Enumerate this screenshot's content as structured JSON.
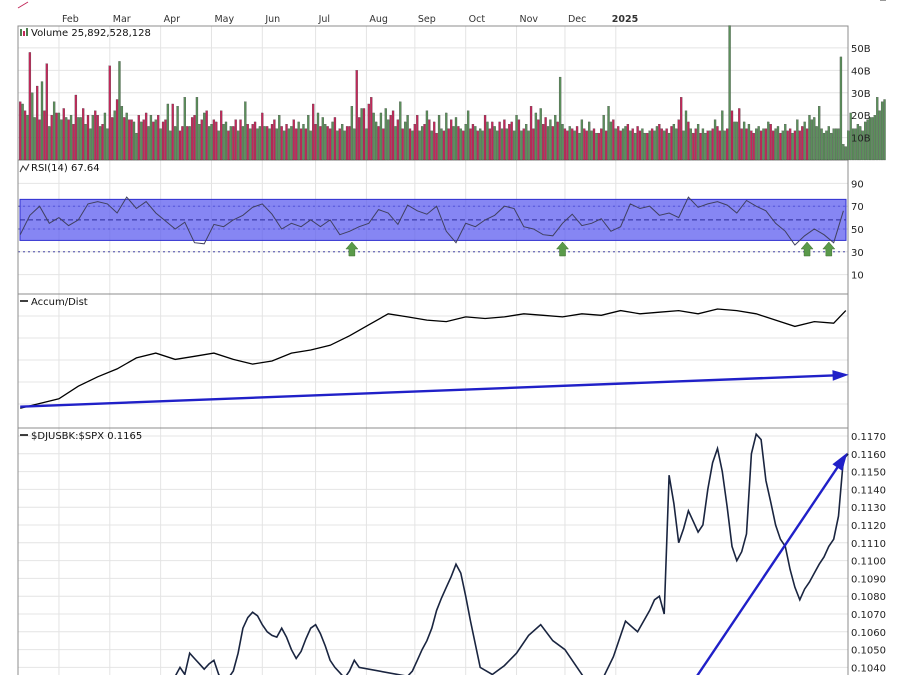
{
  "colors": {
    "up": "#5b8f5b",
    "down": "#c2285a",
    "rsi_band": "#5757ee",
    "trend": "#2020c8",
    "line": "#1a2540",
    "arrow": "#5a9a4a"
  },
  "chart_data": [
    {
      "type": "bar",
      "panel": "volume",
      "title": "Volume 25,892,528,128",
      "title_parts": {
        "name": "Volume",
        "value": "25,892,528,128"
      },
      "y_ticks": [
        "50B",
        "40B",
        "30B",
        "20B",
        "10B"
      ],
      "ylim_billions": [
        0,
        58
      ],
      "values_billions": [
        26,
        25,
        22,
        20,
        48,
        30,
        19,
        33,
        18,
        35,
        22,
        43,
        15,
        20,
        26,
        21,
        21,
        18,
        23,
        19,
        18,
        20,
        16,
        29,
        19,
        19,
        23,
        16,
        20,
        14,
        20,
        22,
        20,
        15,
        16,
        21,
        14,
        42,
        19,
        22,
        27,
        44,
        24,
        19,
        21,
        18,
        18,
        17,
        12,
        20,
        17,
        18,
        21,
        15,
        20,
        17,
        18,
        20,
        14,
        17,
        18,
        25,
        13,
        25,
        15,
        24,
        13,
        15,
        28,
        15,
        15,
        19,
        20,
        28,
        16,
        18,
        21,
        22,
        15,
        16,
        18,
        17,
        13,
        22,
        16,
        17,
        13,
        15,
        15,
        18,
        13,
        18,
        15,
        26,
        16,
        14,
        16,
        17,
        14,
        15,
        21,
        15,
        15,
        14,
        16,
        18,
        14,
        20,
        15,
        13,
        16,
        14,
        15,
        18,
        14,
        17,
        14,
        16,
        14,
        20,
        13,
        25,
        16,
        21,
        15,
        19,
        16,
        15,
        14,
        17,
        19,
        13,
        14,
        16,
        13,
        15,
        15,
        24,
        14,
        40,
        19,
        23,
        23,
        14,
        25,
        28,
        21,
        17,
        15,
        21,
        14,
        23,
        18,
        20,
        22,
        15,
        18,
        26,
        14,
        17,
        20,
        14,
        13,
        16,
        20,
        13,
        15,
        16,
        22,
        18,
        13,
        17,
        12,
        20,
        14,
        13,
        21,
        14,
        18,
        15,
        19,
        15,
        14,
        13,
        16,
        22,
        14,
        16,
        15,
        13,
        14,
        13,
        20,
        17,
        14,
        17,
        15,
        13,
        17,
        14,
        18,
        14,
        16,
        17,
        13,
        20,
        18,
        13,
        14,
        16,
        13,
        24,
        14,
        21,
        18,
        23,
        16,
        19,
        15,
        18,
        15,
        20,
        17,
        37,
        16,
        14,
        13,
        15,
        14,
        13,
        15,
        12,
        18,
        14,
        13,
        17,
        13,
        14,
        12,
        12,
        14,
        20,
        13,
        24,
        17,
        18,
        14,
        15,
        13,
        14,
        15,
        16,
        13,
        14,
        12,
        15,
        13,
        14,
        12,
        12,
        13,
        14,
        13,
        15,
        16,
        14,
        13,
        14,
        12,
        15,
        16,
        14,
        18,
        28,
        13,
        22,
        17,
        14,
        12,
        14,
        16,
        12,
        14,
        12,
        13,
        13,
        14,
        18,
        15,
        13,
        22,
        13,
        14,
        60,
        22,
        17,
        17,
        23,
        14,
        17,
        14,
        16,
        13,
        12,
        14,
        15,
        13,
        14,
        14,
        17,
        16,
        13,
        14,
        15,
        12,
        13,
        16,
        13,
        14,
        12,
        13,
        18,
        13,
        15,
        17,
        14,
        20,
        18,
        19,
        15,
        24,
        14,
        12,
        13,
        15,
        12,
        14,
        14,
        14,
        46,
        7,
        6,
        13,
        21,
        14,
        14,
        16,
        15,
        13,
        17,
        18,
        19,
        19,
        20,
        28,
        22,
        26,
        27
      ],
      "down_flags": [
        1,
        0,
        1,
        0,
        1,
        0,
        0,
        1,
        1,
        0,
        1,
        1,
        0,
        1,
        0,
        1,
        0,
        0,
        1,
        0,
        1,
        0,
        1,
        1,
        0,
        0,
        1,
        0,
        1,
        0,
        0,
        1,
        1,
        0,
        1,
        0,
        0,
        1,
        1,
        0,
        1,
        0,
        0,
        1,
        0,
        1,
        1,
        0,
        0,
        1,
        0,
        1,
        1,
        0,
        0,
        1,
        0,
        1,
        0,
        1,
        1,
        0,
        0,
        1,
        0,
        0,
        1,
        1,
        0,
        1,
        0,
        1,
        1,
        0,
        0,
        1,
        0,
        1,
        0,
        0,
        1,
        1,
        0,
        1,
        0,
        0,
        1,
        0,
        1,
        1,
        0,
        1,
        0,
        0,
        1,
        0,
        1,
        1,
        0,
        0,
        1,
        0,
        1,
        0,
        1,
        1,
        0,
        0,
        1,
        0,
        1,
        0,
        0,
        1,
        1,
        0,
        1,
        0,
        1,
        0,
        0,
        1,
        1,
        0,
        1,
        0,
        0,
        1,
        1,
        0,
        1,
        0,
        1,
        0,
        0,
        1,
        1,
        0,
        0,
        1,
        1,
        0,
        1,
        0,
        1,
        1,
        0,
        0,
        1,
        0,
        1,
        0,
        0,
        1,
        1,
        0,
        1,
        0,
        1,
        0,
        0,
        1,
        0,
        1,
        1,
        0,
        0,
        1,
        0,
        1,
        0,
        1,
        1,
        0,
        0,
        1,
        0,
        1,
        1,
        0,
        0,
        1,
        0,
        1,
        0,
        0,
        1,
        1,
        0,
        1,
        0,
        0,
        1,
        0,
        1,
        1,
        0,
        0,
        1,
        0,
        1,
        0,
        1,
        1,
        0,
        0,
        1,
        0,
        1,
        0,
        0,
        1,
        1,
        0,
        1,
        0,
        1,
        1,
        0,
        0,
        1,
        0,
        1,
        0,
        0,
        1,
        1,
        0,
        1,
        0,
        1,
        0,
        0,
        1,
        1,
        0,
        0,
        1,
        0,
        1,
        1,
        0,
        1,
        0,
        0,
        1,
        0,
        1,
        1,
        0,
        0,
        1,
        0,
        1,
        0,
        1,
        1,
        0,
        0,
        1,
        0,
        1,
        0,
        0,
        1,
        1,
        0,
        1,
        0,
        1,
        0,
        0,
        1,
        1,
        0,
        0,
        1,
        0,
        1,
        1,
        0,
        1,
        0,
        0,
        1,
        0,
        1,
        0,
        1,
        1,
        0,
        0,
        1,
        0,
        1,
        0,
        0,
        1,
        1,
        0,
        1,
        0,
        1,
        1,
        0,
        0,
        1,
        0,
        1,
        0,
        1,
        1,
        0,
        0,
        1,
        0,
        0,
        1,
        1,
        0,
        1,
        0,
        1,
        1,
        0,
        1
      ]
    },
    {
      "type": "line",
      "panel": "rsi",
      "title": "RSI(14) 67.64",
      "title_parts": {
        "name": "RSI(14)",
        "value": "67.64"
      },
      "y_ticks": [
        "90",
        "70",
        "50",
        "30",
        "10"
      ],
      "ylim": [
        0,
        100
      ],
      "band": [
        40,
        76
      ],
      "x_index": [
        0,
        4,
        8,
        12,
        16,
        20,
        24,
        28,
        32,
        36,
        40,
        44,
        48,
        52,
        56,
        60,
        64,
        68,
        72,
        76,
        80,
        84,
        88,
        92,
        96,
        100,
        104,
        108,
        112,
        116,
        120,
        124,
        128,
        132,
        136,
        140,
        144,
        148,
        152,
        156,
        160,
        164,
        168,
        172,
        176,
        180,
        184,
        188,
        192,
        196,
        200,
        204,
        208,
        212,
        216,
        220,
        224,
        228,
        232,
        236,
        240,
        244,
        248,
        252,
        256,
        260,
        264,
        268,
        272,
        276,
        280,
        284,
        288,
        292,
        296,
        300,
        304,
        308,
        312,
        316,
        320,
        324,
        328,
        332,
        336,
        340
      ],
      "values": [
        45,
        62,
        70,
        55,
        60,
        53,
        58,
        72,
        74,
        72,
        64,
        78,
        68,
        74,
        64,
        57,
        50,
        56,
        38,
        37,
        54,
        52,
        58,
        62,
        69,
        72,
        63,
        50,
        55,
        52,
        58,
        52,
        58,
        45,
        48,
        52,
        55,
        67,
        64,
        54,
        71,
        66,
        63,
        70,
        48,
        38,
        55,
        52,
        58,
        62,
        70,
        68,
        52,
        50,
        45,
        44,
        55,
        63,
        53,
        55,
        59,
        48,
        52,
        72,
        68,
        70,
        62,
        64,
        60,
        78,
        69,
        72,
        74,
        71,
        64,
        75,
        70,
        66,
        55,
        48,
        36,
        44,
        50,
        45,
        38,
        66
      ],
      "arrows_at_index": [
        137,
        224,
        325,
        334
      ]
    },
    {
      "type": "line",
      "panel": "accum_dist",
      "title": "Accum/Dist",
      "x_index": [
        0,
        8,
        16,
        24,
        32,
        40,
        48,
        56,
        64,
        72,
        80,
        88,
        96,
        104,
        112,
        120,
        128,
        136,
        144,
        152,
        160,
        168,
        176,
        184,
        192,
        200,
        208,
        216,
        224,
        232,
        240,
        248,
        256,
        264,
        272,
        280,
        288,
        296,
        304,
        312,
        320,
        328,
        336,
        341
      ],
      "values": [
        10,
        13,
        16,
        24,
        30,
        35,
        42,
        45,
        41,
        43,
        45,
        41,
        38,
        40,
        45,
        47,
        50,
        56,
        63,
        70,
        68,
        66,
        65,
        68,
        67,
        68,
        70,
        69,
        68,
        70,
        69,
        72,
        70,
        71,
        72,
        70,
        73,
        72,
        70,
        66,
        62,
        65,
        64,
        72
      ],
      "ylim": [
        0,
        80
      ],
      "trend_from_index": 0,
      "trend_to_index": 341,
      "trend_values": [
        11,
        31
      ]
    },
    {
      "type": "line",
      "panel": "ratio",
      "title": "$DJUSBK:$SPX 0.1165",
      "title_parts": {
        "name": "$DJUSBK:$SPX",
        "value": "0.1165"
      },
      "y_ticks": [
        "0.1170",
        "0.1160",
        "0.1150",
        "0.1140",
        "0.1130",
        "0.1120",
        "0.1110",
        "0.1100",
        "0.1090",
        "0.1080",
        "0.1070",
        "0.1060",
        "0.1050",
        "0.1040"
      ],
      "ylim": [
        0.1032,
        0.1177
      ],
      "x_index": [
        62,
        64,
        66,
        68,
        70,
        72,
        74,
        76,
        78,
        80,
        82,
        84,
        86,
        88,
        90,
        92,
        94,
        96,
        98,
        100,
        102,
        104,
        106,
        108,
        110,
        112,
        114,
        116,
        118,
        120,
        122,
        124,
        126,
        128,
        130,
        132,
        134,
        136,
        138,
        140,
        160,
        162,
        164,
        166,
        168,
        170,
        172,
        174,
        176,
        178,
        180,
        182,
        184,
        186,
        190,
        195,
        200,
        205,
        210,
        215,
        220,
        225,
        230,
        235,
        240,
        245,
        250,
        255,
        260,
        262,
        264,
        266,
        268,
        270,
        272,
        274,
        276,
        278,
        280,
        282,
        284,
        286,
        288,
        290,
        292,
        294,
        296,
        298,
        300,
        302,
        304,
        306,
        308,
        310,
        312,
        314,
        316,
        318,
        320,
        322,
        324,
        326,
        328,
        330,
        332,
        334,
        336,
        338,
        340,
        342
      ],
      "values": [
        0.103,
        0.1035,
        0.104,
        0.1036,
        0.1048,
        0.1045,
        0.1042,
        0.1039,
        0.1042,
        0.1044,
        0.1036,
        0.1032,
        0.1034,
        0.1038,
        0.1048,
        0.1062,
        0.1068,
        0.1071,
        0.1069,
        0.1064,
        0.106,
        0.1058,
        0.1057,
        0.1062,
        0.1057,
        0.105,
        0.1045,
        0.1049,
        0.1056,
        0.1062,
        0.1064,
        0.1059,
        0.1052,
        0.1044,
        0.104,
        0.1037,
        0.1034,
        0.1038,
        0.1044,
        0.104,
        0.1035,
        0.1038,
        0.1044,
        0.105,
        0.1055,
        0.1062,
        0.1072,
        0.1079,
        0.1085,
        0.1091,
        0.1098,
        0.1093,
        0.108,
        0.1066,
        0.104,
        0.1036,
        0.1041,
        0.1048,
        0.1058,
        0.1064,
        0.1055,
        0.105,
        0.104,
        0.103,
        0.1032,
        0.1046,
        0.1066,
        0.106,
        0.1072,
        0.1078,
        0.108,
        0.107,
        0.1148,
        0.1132,
        0.111,
        0.1118,
        0.1128,
        0.1122,
        0.1116,
        0.112,
        0.114,
        0.1155,
        0.1163,
        0.115,
        0.113,
        0.1108,
        0.11,
        0.1105,
        0.1115,
        0.116,
        0.1171,
        0.1168,
        0.1145,
        0.1133,
        0.112,
        0.1112,
        0.1108,
        0.1095,
        0.1085,
        0.1078,
        0.1084,
        0.1088,
        0.1093,
        0.1098,
        0.1102,
        0.1108,
        0.1112,
        0.1125,
        0.1157,
        0.116
      ],
      "trend_from": [
        276,
        0.1028
      ],
      "trend_to": [
        341,
        0.1156
      ]
    }
  ],
  "axis": {
    "months": [
      "Feb",
      "Mar",
      "Apr",
      "May",
      "Jun",
      "Jul",
      "Aug",
      "Sep",
      "Oct",
      "Nov",
      "Dec",
      "2025"
    ],
    "month_start_index": [
      16,
      37,
      58,
      79,
      100,
      122,
      143,
      163,
      184,
      205,
      225,
      246
    ],
    "n_days": 342
  }
}
